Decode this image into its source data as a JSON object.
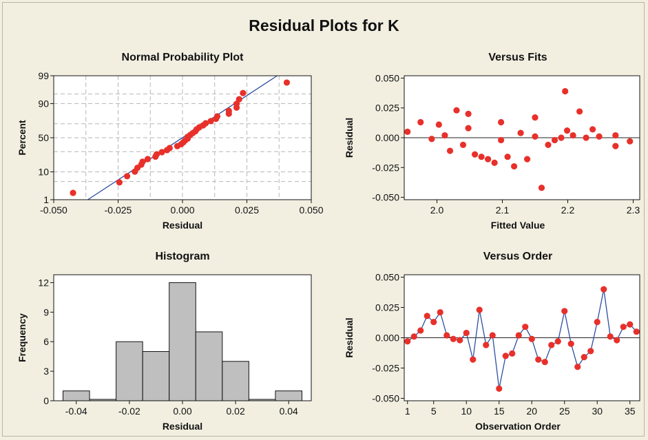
{
  "title": "Residual Plots for K",
  "chart_data": [
    {
      "id": "npp",
      "type": "scatter",
      "title": "Normal Probability Plot",
      "xlabel": "Residual",
      "ylabel": "Percent",
      "xlim": [
        -0.05,
        0.05
      ],
      "xticks": [
        -0.05,
        -0.025,
        0.0,
        0.025,
        0.05
      ],
      "xtick_labels": [
        "-0.050",
        "-0.025",
        "0.000",
        "0.025",
        "0.050"
      ],
      "ytick_labels": [
        "1",
        "10",
        "50",
        "90",
        "99"
      ],
      "y_scale": "normal-probability",
      "grid": true,
      "fit_line_color": "#2c4da0",
      "point_color": "#e8302a",
      "residuals_sorted": [
        -0.0425,
        -0.0245,
        -0.0215,
        -0.0185,
        -0.0175,
        -0.016,
        -0.0155,
        -0.0135,
        -0.0105,
        -0.01,
        -0.008,
        -0.006,
        -0.005,
        -0.002,
        -0.0005,
        0.0003,
        0.001,
        0.002,
        0.002,
        0.003,
        0.004,
        0.005,
        0.0055,
        0.0065,
        0.008,
        0.009,
        0.011,
        0.013,
        0.0135,
        0.018,
        0.018,
        0.021,
        0.021,
        0.022,
        0.0235,
        0.0405
      ],
      "fit_line": {
        "mean": 0.0,
        "sd": 0.0158
      }
    },
    {
      "id": "fits",
      "type": "scatter",
      "title": "Versus Fits",
      "xlabel": "Fitted Value",
      "ylabel": "Residual",
      "xlim": [
        1.95,
        2.31
      ],
      "ylim": [
        -0.052,
        0.052
      ],
      "xticks": [
        2.0,
        2.1,
        2.2,
        2.3
      ],
      "xtick_labels": [
        "2.0",
        "2.1",
        "2.2",
        "2.3"
      ],
      "yticks": [
        -0.05,
        -0.025,
        0.0,
        0.025,
        0.05
      ],
      "ytick_labels": [
        "-0.050",
        "-0.025",
        "0.000",
        "0.025",
        "0.050"
      ],
      "reference_line": 0,
      "point_color": "#e8302a",
      "points": [
        [
          1.955,
          0.005
        ],
        [
          1.975,
          0.013
        ],
        [
          1.992,
          -0.001
        ],
        [
          2.003,
          0.011
        ],
        [
          2.012,
          0.002
        ],
        [
          2.02,
          -0.011
        ],
        [
          2.03,
          0.023
        ],
        [
          2.04,
          -0.006
        ],
        [
          2.048,
          0.02
        ],
        [
          2.048,
          0.008
        ],
        [
          2.058,
          -0.014
        ],
        [
          2.068,
          -0.016
        ],
        [
          2.078,
          -0.018
        ],
        [
          2.088,
          -0.021
        ],
        [
          2.098,
          0.013
        ],
        [
          2.098,
          -0.002
        ],
        [
          2.108,
          -0.016
        ],
        [
          2.118,
          -0.024
        ],
        [
          2.128,
          0.004
        ],
        [
          2.138,
          -0.018
        ],
        [
          2.15,
          0.001
        ],
        [
          2.15,
          0.017
        ],
        [
          2.16,
          -0.042
        ],
        [
          2.17,
          -0.006
        ],
        [
          2.18,
          -0.002
        ],
        [
          2.19,
          0.0
        ],
        [
          2.196,
          0.039
        ],
        [
          2.199,
          0.006
        ],
        [
          2.208,
          0.002
        ],
        [
          2.218,
          0.022
        ],
        [
          2.228,
          0.0
        ],
        [
          2.238,
          0.007
        ],
        [
          2.248,
          0.001
        ],
        [
          2.273,
          0.002
        ],
        [
          2.273,
          -0.007
        ],
        [
          2.295,
          -0.003
        ]
      ]
    },
    {
      "id": "hist",
      "type": "bar",
      "title": "Histogram",
      "xlabel": "Residual",
      "ylabel": "Frequency",
      "xlim": [
        -0.0485,
        0.0485
      ],
      "ylim": [
        0,
        12.8
      ],
      "xticks": [
        -0.04,
        -0.02,
        0.0,
        0.02,
        0.04
      ],
      "xtick_labels": [
        "-0.04",
        "-0.02",
        "0.00",
        "0.02",
        "0.04"
      ],
      "yticks": [
        0,
        3,
        6,
        9,
        12
      ],
      "ytick_labels": [
        "0",
        "3",
        "6",
        "9",
        "12"
      ],
      "bar_color": "#bfbfbf",
      "bin_width": 0.01,
      "bin_centers": [
        -0.04,
        -0.03,
        -0.02,
        -0.01,
        0.0,
        0.01,
        0.02,
        0.03,
        0.04
      ],
      "values": [
        1,
        0,
        6,
        5,
        12,
        7,
        4,
        0,
        1
      ]
    },
    {
      "id": "order",
      "type": "line",
      "title": "Versus Order",
      "xlabel": "Observation Order",
      "ylabel": "Residual",
      "xlim": [
        0.5,
        36.5
      ],
      "ylim": [
        -0.052,
        0.052
      ],
      "xticks": [
        1,
        5,
        10,
        15,
        20,
        25,
        30,
        35
      ],
      "xtick_labels": [
        "1",
        "5",
        "10",
        "15",
        "20",
        "25",
        "30",
        "35"
      ],
      "yticks": [
        -0.05,
        -0.025,
        0.0,
        0.025,
        0.05
      ],
      "ytick_labels": [
        "-0.050",
        "-0.025",
        "0.000",
        "0.025",
        "0.050"
      ],
      "reference_line": 0,
      "line_color": "#2c4da0",
      "point_color": "#e8302a",
      "x": [
        1,
        2,
        3,
        4,
        5,
        6,
        7,
        8,
        9,
        10,
        11,
        12,
        13,
        14,
        15,
        16,
        17,
        18,
        19,
        20,
        21,
        22,
        23,
        24,
        25,
        26,
        27,
        28,
        29,
        30,
        31,
        32,
        33,
        34,
        35,
        36
      ],
      "values": [
        -0.003,
        0.001,
        0.006,
        0.018,
        0.013,
        0.021,
        0.002,
        -0.001,
        -0.002,
        0.004,
        -0.018,
        0.023,
        -0.006,
        0.002,
        -0.042,
        -0.015,
        -0.013,
        0.002,
        0.009,
        -0.001,
        -0.018,
        -0.02,
        -0.006,
        -0.003,
        0.022,
        -0.005,
        -0.024,
        -0.016,
        -0.011,
        0.013,
        0.04,
        0.001,
        -0.002,
        0.009,
        0.011,
        0.005
      ]
    }
  ]
}
